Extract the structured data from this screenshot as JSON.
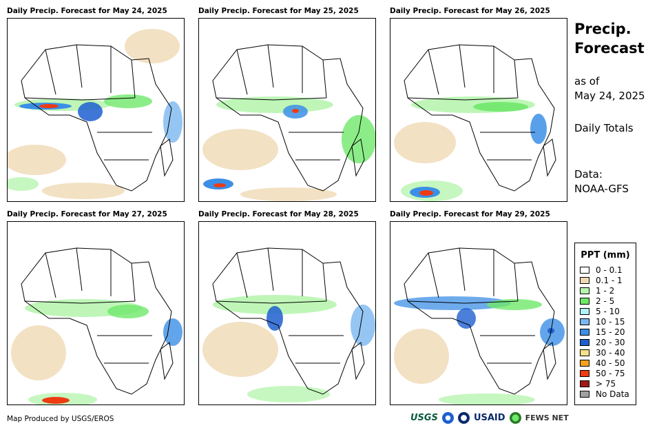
{
  "panels": [
    {
      "title": "Daily Precip. Forecast for May 24, 2025"
    },
    {
      "title": "Daily Precip. Forecast for May 25, 2025"
    },
    {
      "title": "Daily Precip. Forecast for May 26, 2025"
    },
    {
      "title": "Daily Precip. Forecast for May 27, 2025"
    },
    {
      "title": "Daily Precip. Forecast for May 28, 2025"
    },
    {
      "title": "Daily Precip. Forecast for May 29, 2025"
    }
  ],
  "sidebar": {
    "heading_line1": "Precip.",
    "heading_line2": "Forecast",
    "as_of_label": "as of",
    "as_of_date": "May 24, 2025",
    "totals_label": "Daily Totals",
    "data_label": "Data:",
    "data_source": "NOAA-GFS"
  },
  "legend": {
    "title": "PPT (mm)",
    "items": [
      {
        "label": "0 - 0.1",
        "color": "#ffffff"
      },
      {
        "label": "0.1 - 1",
        "color": "#efd9b4"
      },
      {
        "label": "1 - 2",
        "color": "#b8f5b0"
      },
      {
        "label": "2 - 5",
        "color": "#6fe86a"
      },
      {
        "label": "5 - 10",
        "color": "#b2f1f7"
      },
      {
        "label": "10 - 15",
        "color": "#7bb8f0"
      },
      {
        "label": "15 - 20",
        "color": "#3c8fe6"
      },
      {
        "label": "20 - 30",
        "color": "#1f5fd0"
      },
      {
        "label": "30 - 40",
        "color": "#f7e08a"
      },
      {
        "label": "40 - 50",
        "color": "#f5a21c"
      },
      {
        "label": "50 - 75",
        "color": "#ee3b12"
      },
      {
        "label": "> 75",
        "color": "#a01818"
      },
      {
        "label": "No Data",
        "color": "#a0a0a0"
      }
    ]
  },
  "footer": {
    "credit": "Map Produced by USGS/EROS",
    "logo_usgs": "USGS",
    "logo_usaid": "USAID",
    "logo_fews": "FEWS NET"
  }
}
